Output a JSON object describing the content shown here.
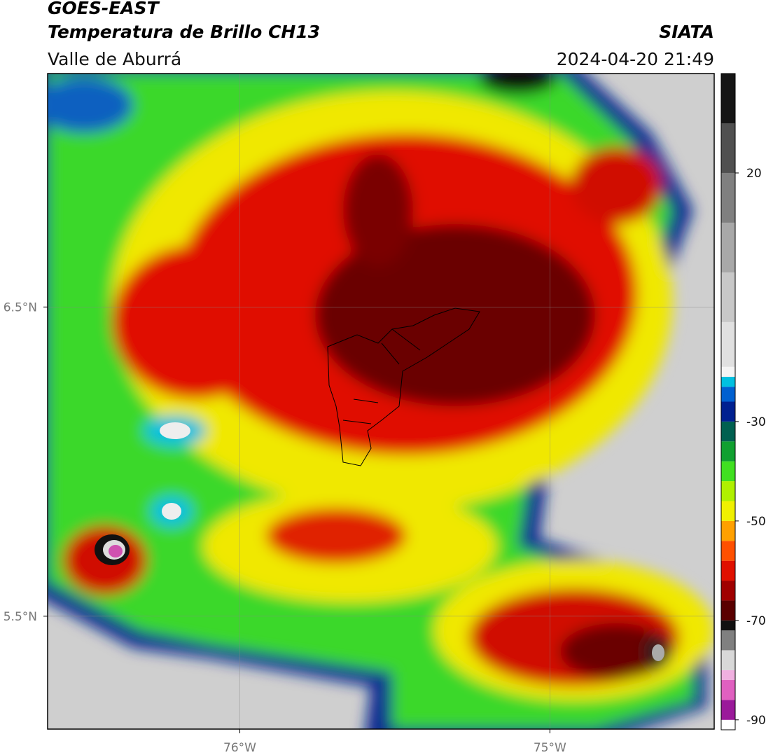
{
  "header": {
    "title": "GOES-EAST",
    "subtitle": "Temperatura de Brillo CH13",
    "source": "SIATA",
    "region": "Valle de Aburrá",
    "datetime": "2024-04-20 21:49"
  },
  "map": {
    "xlim": [
      -76.62,
      -74.47
    ],
    "ylim": [
      5.135,
      7.255
    ],
    "xticks": [
      {
        "value": -76,
        "label": "76°W"
      },
      {
        "value": -75,
        "label": "75°W"
      }
    ],
    "yticks": [
      {
        "value": 6.5,
        "label": "6.5°N"
      },
      {
        "value": 5.5,
        "label": "5.5°N"
      }
    ],
    "grid": true
  },
  "colorbar": {
    "lim": [
      -92,
      40
    ],
    "ticks": [
      20,
      -30,
      -50,
      -70,
      -90
    ],
    "levels": [
      -92,
      -90,
      -86,
      -82,
      -80,
      -76,
      -72,
      -70,
      -66,
      -62,
      -58,
      -54,
      -50,
      -46,
      -42,
      -38,
      -34,
      -30,
      -26,
      -23,
      -21,
      -19,
      -10,
      0,
      10,
      20,
      30,
      40
    ],
    "colors": [
      "#ffffff",
      "#9a1a9a",
      "#e060c0",
      "#f0b0e0",
      "#d8d8d8",
      "#808080",
      "#111111",
      "#5a0000",
      "#a00000",
      "#e01000",
      "#ff5000",
      "#ffa000",
      "#f0f000",
      "#b0f000",
      "#40e020",
      "#10a030",
      "#006050",
      "#002090",
      "#0060d0",
      "#00c0e0",
      "#f4f4f4",
      "#e0e0e0",
      "#c8c8c8",
      "#a8a8a8",
      "#808080",
      "#505050",
      "#151515"
    ]
  }
}
